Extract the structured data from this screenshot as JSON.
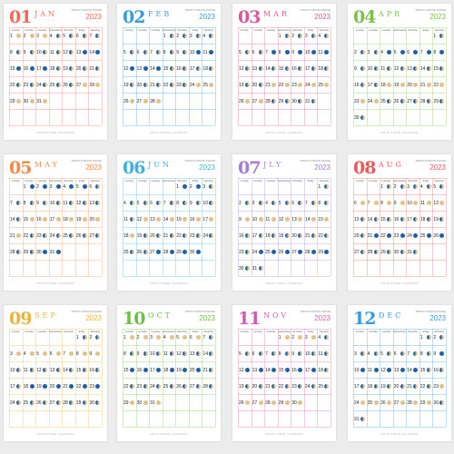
{
  "tagline": "TODAY'S MOON PHASE",
  "footer": "MOON PHASE CALENDAR",
  "weekdays": [
    "sunday",
    "monday",
    "tuesday",
    "wednesday",
    "thursday",
    "friday",
    "saturday"
  ],
  "months": [
    {
      "num": "01",
      "abbr": "JAN",
      "year": "2023",
      "color": "#f06a5a",
      "start": 0,
      "days": 31
    },
    {
      "num": "02",
      "abbr": "FEB",
      "year": "2023",
      "color": "#3a9bd9",
      "start": 3,
      "days": 28
    },
    {
      "num": "03",
      "abbr": "MAR",
      "year": "2023",
      "color": "#d65a9a",
      "start": 3,
      "days": 31
    },
    {
      "num": "04",
      "abbr": "APR",
      "year": "2023",
      "color": "#7cc04a",
      "start": 6,
      "days": 30
    },
    {
      "num": "05",
      "abbr": "MAY",
      "year": "2023",
      "color": "#ef8a4a",
      "start": 1,
      "days": 31
    },
    {
      "num": "06",
      "abbr": "JUN",
      "year": "2023",
      "color": "#3eb1e0",
      "start": 4,
      "days": 30
    },
    {
      "num": "07",
      "abbr": "JLY",
      "year": "2023",
      "color": "#a77bd6",
      "start": 6,
      "days": 31
    },
    {
      "num": "08",
      "abbr": "AUG",
      "year": "2023",
      "color": "#e85a5a",
      "start": 2,
      "days": 31
    },
    {
      "num": "09",
      "abbr": "SEP",
      "year": "2023",
      "color": "#e8b43a",
      "start": 5,
      "days": 30
    },
    {
      "num": "10",
      "abbr": "OCT",
      "year": "2023",
      "color": "#6cc04a",
      "start": 0,
      "days": 31
    },
    {
      "num": "11",
      "abbr": "NOV",
      "year": "2023",
      "color": "#d65ab5",
      "start": 3,
      "days": 30
    },
    {
      "num": "12",
      "abbr": "DEC",
      "year": "2023",
      "color": "#3a9bd9",
      "start": 5,
      "days": 31
    }
  ]
}
